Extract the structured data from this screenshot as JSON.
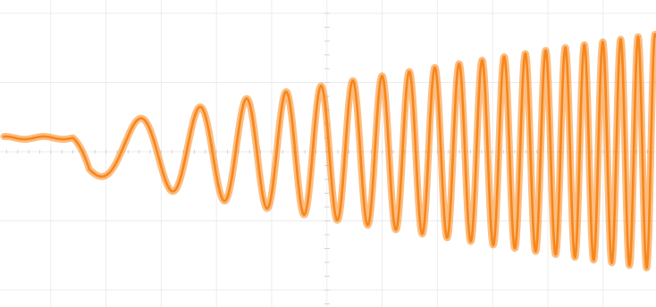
{
  "chart_data": {
    "type": "line",
    "title": "",
    "xlabel": "",
    "ylabel": "",
    "grid": true,
    "legend": "none",
    "x_divisions": 12,
    "y_divisions": 4,
    "xlim": [
      0,
      12
    ],
    "ylim": [
      -2,
      2
    ],
    "series": [
      {
        "color": "#f7861a",
        "description_of_shape": "flat then chirp: frequency increases and amplitude grows with time",
        "flat_until_x": 1.4,
        "baseline_y": 0.2,
        "start_frequency_cycles_per_div": 0.45,
        "end_frequency_cycles_per_div": 3.3,
        "start_amplitude_div": 0.25,
        "end_amplitude_div": 1.7,
        "noise_band_div": 0.1
      }
    ]
  }
}
